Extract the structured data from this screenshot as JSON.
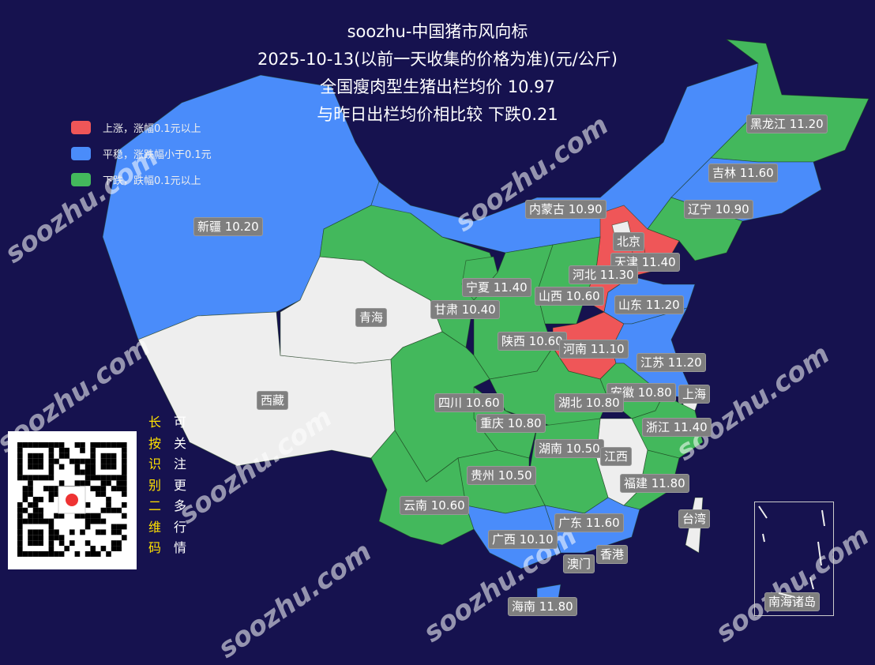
{
  "title": {
    "line1": "soozhu-中国猪市风向标",
    "line2": "2025-10-13(以前一天收集的价格为准)(元/公斤)",
    "line3": "全国瘦肉型生猪出栏均价 10.97",
    "line4": "与昨日出栏均价相比较 下跌0.21"
  },
  "legend": [
    {
      "label": "上涨，涨幅0.1元以上",
      "color": "#ef5658"
    },
    {
      "label": "平稳，涨跌幅小于0.1元",
      "color": "#4a8cfa"
    },
    {
      "label": "下跌，跌幅0.1元以上",
      "color": "#43b85c"
    }
  ],
  "colors": {
    "up": "#ef5658",
    "flat": "#4a8cfa",
    "down": "#43b85c",
    "nodata": "#eeeeee",
    "background": "#16124f"
  },
  "provinces": {
    "xinjiang": {
      "label": "新疆 10.20",
      "status": "flat"
    },
    "xizang": {
      "label": "西藏",
      "status": "nodata"
    },
    "qinghai": {
      "label": "青海",
      "status": "nodata"
    },
    "gansu": {
      "label": "甘肃 10.40",
      "status": "down"
    },
    "ningxia": {
      "label": "宁夏 11.40",
      "status": "down"
    },
    "neimenggu": {
      "label": "内蒙古 10.90",
      "status": "flat"
    },
    "heilongjiang": {
      "label": "黑龙江 11.20",
      "status": "down"
    },
    "jilin": {
      "label": "吉林 11.60",
      "status": "flat"
    },
    "liaoning": {
      "label": "辽宁 10.90",
      "status": "down"
    },
    "beijing": {
      "label": "北京",
      "status": "nodata"
    },
    "tianjin": {
      "label": "天津 11.40",
      "status": "up"
    },
    "hebei": {
      "label": "河北 11.30",
      "status": "up"
    },
    "shanxi": {
      "label": "山西 10.60",
      "status": "down"
    },
    "shandong": {
      "label": "山东 11.20",
      "status": "flat"
    },
    "shaanxi": {
      "label": "陕西 10.60",
      "status": "down"
    },
    "henan": {
      "label": "河南 11.10",
      "status": "up"
    },
    "jiangsu": {
      "label": "江苏 11.20",
      "status": "flat"
    },
    "anhui": {
      "label": "安徽 10.80",
      "status": "down"
    },
    "shanghai": {
      "label": "上海",
      "status": "nodata"
    },
    "sichuan": {
      "label": "四川 10.60",
      "status": "down"
    },
    "hubei": {
      "label": "湖北 10.80",
      "status": "down"
    },
    "chongqing": {
      "label": "重庆 10.80",
      "status": "down"
    },
    "zhejiang": {
      "label": "浙江 11.40",
      "status": "down"
    },
    "hunan": {
      "label": "湖南 10.50",
      "status": "down"
    },
    "jiangxi": {
      "label": "江西",
      "status": "nodata"
    },
    "guizhou": {
      "label": "贵州 10.50",
      "status": "down"
    },
    "fujian": {
      "label": "福建 11.80",
      "status": "down"
    },
    "yunnan": {
      "label": "云南 10.60",
      "status": "down"
    },
    "taiwan": {
      "label": "台湾",
      "status": "nodata"
    },
    "guangdong": {
      "label": "广东 11.60",
      "status": "flat"
    },
    "guangxi": {
      "label": "广西 10.10",
      "status": "flat"
    },
    "xianggang": {
      "label": "香港",
      "status": "nodata"
    },
    "aomen": {
      "label": "澳门",
      "status": "nodata"
    },
    "hainan": {
      "label": "海南 11.80",
      "status": "flat"
    },
    "nanhai": {
      "label": "南海诸岛",
      "status": "nodata"
    }
  },
  "qr": {
    "prompt_col1": [
      "长",
      "按",
      "识",
      "别",
      "二",
      "维",
      "码"
    ],
    "prompt_col2": [
      "可",
      "关",
      "注",
      "更",
      "多",
      "行",
      "情"
    ]
  },
  "watermark": "soozhu.com"
}
